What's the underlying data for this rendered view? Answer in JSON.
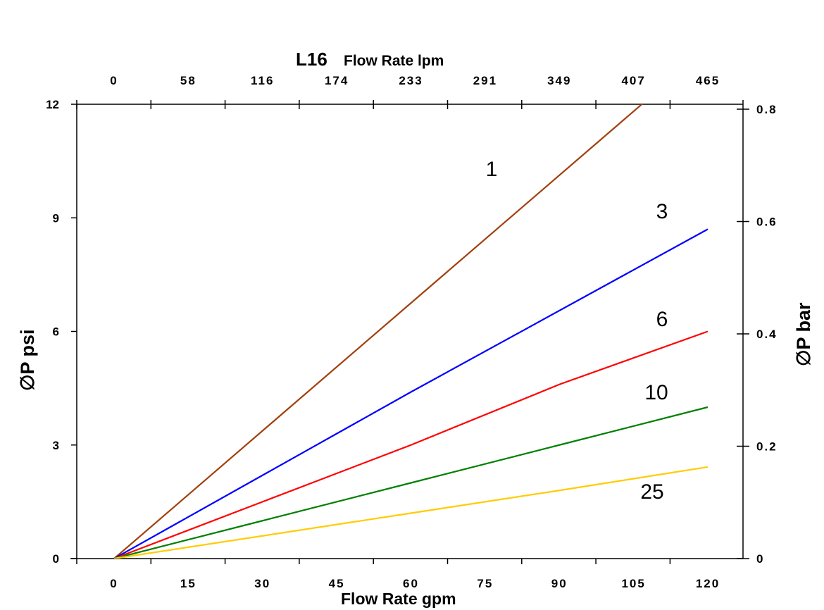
{
  "chart_data": {
    "type": "line",
    "title_bold": "L16",
    "top_axis_label": "Flow Rate lpm",
    "xlabel": "Flow Rate gpm",
    "ylabel": "∅P psi",
    "y2label": "∅P bar",
    "xlim": [
      -7.5,
      127.5
    ],
    "ylim": [
      0,
      12
    ],
    "y2lim": [
      0,
      0.8
    ],
    "x_ticks": [
      "0",
      "15",
      "30",
      "45",
      "60",
      "75",
      "90",
      "105",
      "120"
    ],
    "x_tick_values": [
      0,
      15,
      30,
      45,
      60,
      75,
      90,
      105,
      120
    ],
    "top_ticks": [
      "0",
      "58",
      "116",
      "174",
      "233",
      "291",
      "349",
      "407",
      "465"
    ],
    "y_ticks": [
      "0",
      "3",
      "6",
      "9",
      "12"
    ],
    "y_tick_values": [
      0,
      3,
      6,
      9,
      12
    ],
    "y2_ticks": [
      "0",
      "0.2",
      "0.4",
      "0.6",
      "0.8"
    ],
    "y2_tick_values": [
      0,
      0.2,
      0.4,
      0.6,
      0.8
    ],
    "grid": false,
    "series": [
      {
        "name": "1",
        "color": "#a0410d",
        "x": [
          0,
          120
        ],
        "y": [
          0,
          13.5
        ]
      },
      {
        "name": "3",
        "color": "#0000ff",
        "x": [
          0,
          30,
          45,
          60,
          120
        ],
        "y": [
          0,
          2.2,
          3.3,
          4.4,
          8.7
        ]
      },
      {
        "name": "6",
        "color": "#ff0000",
        "x": [
          0,
          30,
          60,
          90,
          120
        ],
        "y": [
          0,
          1.5,
          3.0,
          4.6,
          6.0
        ]
      },
      {
        "name": "10",
        "color": "#008000",
        "x": [
          0,
          30,
          60,
          90,
          120
        ],
        "y": [
          0,
          1.0,
          2.0,
          3.0,
          4.0
        ]
      },
      {
        "name": "25",
        "color": "#ffcc00",
        "x": [
          0,
          30,
          60,
          90,
          120
        ],
        "y": [
          0,
          0.6,
          1.2,
          1.8,
          2.42
        ]
      }
    ]
  }
}
